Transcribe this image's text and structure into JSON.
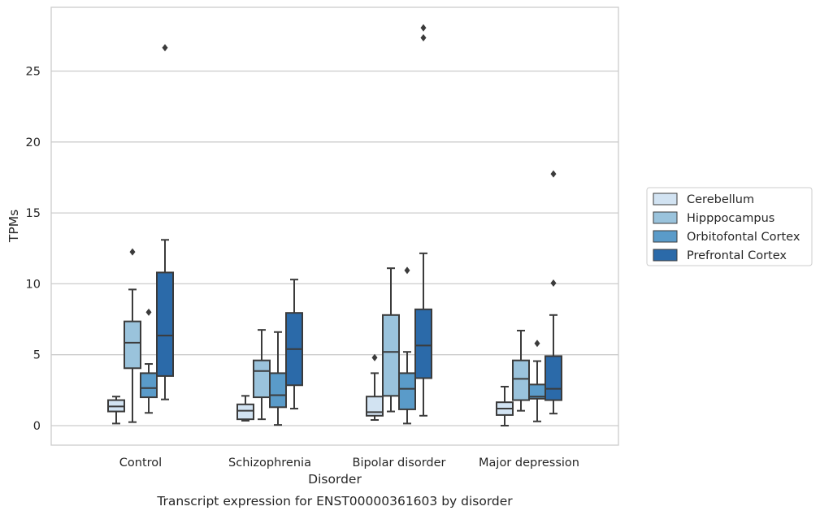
{
  "chart_data": {
    "type": "boxplot",
    "title": "",
    "caption": "Transcript expression for ENST00000361603 by disorder",
    "xlabel": "Disorder",
    "ylabel": "TPMs",
    "ylim": [
      -1.3,
      29.5
    ],
    "yticks": [
      0,
      5,
      10,
      15,
      20,
      25
    ],
    "grid": "horizontal",
    "legend_position": "right",
    "categories": [
      "Control",
      "Schizophrenia",
      "Bipolar disorder",
      "Major depression"
    ],
    "series": [
      {
        "name": "Cerebellum",
        "color": "#d2e3f2",
        "boxes": [
          {
            "whislo": 0.15,
            "q1": 1.0,
            "med": 1.35,
            "q3": 1.8,
            "whishi": 2.05,
            "fliers": []
          },
          {
            "whislo": 0.35,
            "q1": 0.45,
            "med": 1.05,
            "q3": 1.5,
            "whishi": 2.1,
            "fliers": []
          },
          {
            "whislo": 0.4,
            "q1": 0.7,
            "med": 0.95,
            "q3": 2.05,
            "whishi": 3.7,
            "fliers": [
              4.8
            ]
          },
          {
            "whislo": 0.0,
            "q1": 0.75,
            "med": 1.2,
            "q3": 1.65,
            "whishi": 2.75,
            "fliers": []
          }
        ]
      },
      {
        "name": "Hipppocampus",
        "color": "#9ac3dc",
        "boxes": [
          {
            "whislo": 0.25,
            "q1": 4.05,
            "med": 5.85,
            "q3": 7.35,
            "whishi": 9.6,
            "fliers": [
              12.25
            ]
          },
          {
            "whislo": 0.45,
            "q1": 2.0,
            "med": 3.85,
            "q3": 4.6,
            "whishi": 6.75,
            "fliers": []
          },
          {
            "whislo": 1.0,
            "q1": 2.1,
            "med": 5.2,
            "q3": 7.8,
            "whishi": 11.1,
            "fliers": []
          },
          {
            "whislo": 1.05,
            "q1": 1.8,
            "med": 3.3,
            "q3": 4.6,
            "whishi": 6.7,
            "fliers": []
          }
        ]
      },
      {
        "name": "Orbitofontal Cortex",
        "color": "#5a9bc9",
        "boxes": [
          {
            "whislo": 0.9,
            "q1": 2.0,
            "med": 2.65,
            "q3": 3.7,
            "whishi": 4.35,
            "fliers": [
              8.0
            ]
          },
          {
            "whislo": 0.05,
            "q1": 1.3,
            "med": 2.15,
            "q3": 3.7,
            "whishi": 6.6,
            "fliers": []
          },
          {
            "whislo": 0.15,
            "q1": 1.15,
            "med": 2.6,
            "q3": 3.7,
            "whishi": 5.2,
            "fliers": [
              10.95
            ]
          },
          {
            "whislo": 0.3,
            "q1": 1.9,
            "med": 2.05,
            "q3": 2.9,
            "whishi": 4.55,
            "fliers": [
              5.8
            ]
          }
        ]
      },
      {
        "name": "Prefrontal Cortex",
        "color": "#2b6aa9",
        "boxes": [
          {
            "whislo": 1.85,
            "q1": 3.5,
            "med": 6.35,
            "q3": 10.8,
            "whishi": 13.1,
            "fliers": [
              26.65
            ]
          },
          {
            "whislo": 1.2,
            "q1": 2.85,
            "med": 5.4,
            "q3": 7.95,
            "whishi": 10.3,
            "fliers": []
          },
          {
            "whislo": 0.7,
            "q1": 3.35,
            "med": 5.65,
            "q3": 8.2,
            "whishi": 12.15,
            "fliers": [
              27.35,
              28.05
            ]
          },
          {
            "whislo": 0.85,
            "q1": 1.8,
            "med": 2.6,
            "q3": 4.9,
            "whishi": 7.8,
            "fliers": [
              10.05,
              17.75
            ]
          }
        ]
      }
    ]
  }
}
